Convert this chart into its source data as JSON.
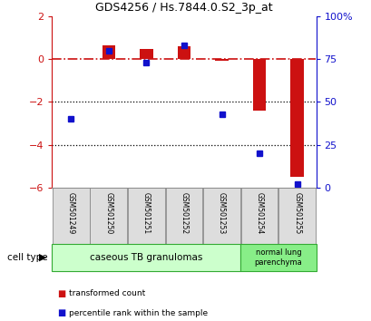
{
  "title": "GDS4256 / Hs.7844.0.S2_3p_at",
  "samples": [
    "GSM501249",
    "GSM501250",
    "GSM501251",
    "GSM501252",
    "GSM501253",
    "GSM501254",
    "GSM501255"
  ],
  "transformed_count": [
    0.0,
    0.65,
    0.45,
    0.6,
    -0.1,
    -2.4,
    -5.5
  ],
  "percentile_rank": [
    40,
    80,
    73,
    83,
    43,
    20,
    2
  ],
  "ylim_left": [
    -6,
    2
  ],
  "ylim_right": [
    0,
    100
  ],
  "yticks_left": [
    -6,
    -4,
    -2,
    0,
    2
  ],
  "yticks_right": [
    0,
    25,
    50,
    75,
    100
  ],
  "yticklabels_right": [
    "0",
    "25",
    "50",
    "75",
    "100%"
  ],
  "dotted_lines": [
    -2,
    -4
  ],
  "bar_color": "#cc1111",
  "square_color": "#1111cc",
  "hline_color": "#cc1111",
  "group1_label": "caseous TB granulomas",
  "group1_color": "#ccffcc",
  "group1_border": "#33aa33",
  "group1_n": 5,
  "group2_label": "normal lung\nparenchyma",
  "group2_color": "#88ee88",
  "group2_border": "#33aa33",
  "group2_n": 2,
  "legend_red_label": "transformed count",
  "legend_blue_label": "percentile rank within the sample",
  "cell_type_label": "cell type",
  "bar_width": 0.35
}
